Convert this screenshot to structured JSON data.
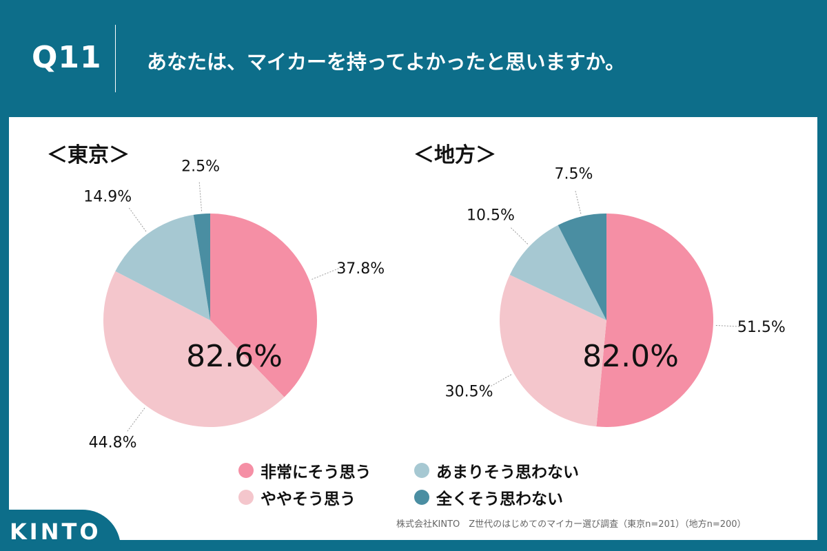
{
  "header": {
    "qnum": "Q11",
    "question": "あなたは、マイカーを持ってよかったと思いますか。"
  },
  "colors": {
    "very_agree": "#f58fa5",
    "somewhat_agree": "#f4c6cc",
    "somewhat_disagree": "#a6c8d2",
    "strongly_disagree": "#4a8ea2",
    "brand": "#0d6e8a"
  },
  "legend": [
    {
      "label": "非常にそう思う",
      "color": "#f58fa5"
    },
    {
      "label": "ややそう思う",
      "color": "#f4c6cc"
    },
    {
      "label": "あまりそう思わない",
      "color": "#a6c8d2"
    },
    {
      "label": "全くそう思わない",
      "color": "#4a8ea2"
    }
  ],
  "chart_data": [
    {
      "type": "pie",
      "title": "＜東京＞",
      "center_label": "82.6%",
      "categories": [
        "非常にそう思う",
        "ややそう思う",
        "あまりそう思わない",
        "全くそう思わない"
      ],
      "values": [
        37.8,
        44.8,
        14.9,
        2.5
      ],
      "value_labels": [
        "37.8%",
        "44.8%",
        "14.9%",
        "2.5%"
      ]
    },
    {
      "type": "pie",
      "title": "＜地方＞",
      "center_label": "82.0%",
      "categories": [
        "非常にそう思う",
        "ややそう思う",
        "あまりそう思わない",
        "全くそう思わない"
      ],
      "values": [
        51.5,
        30.5,
        10.5,
        7.5
      ],
      "value_labels": [
        "51.5%",
        "30.5%",
        "10.5%",
        "7.5%"
      ]
    }
  ],
  "footer": {
    "source": "株式会社KINTO　Z世代のはじめてのマイカー選び調査（東京n=201）（地方n=200）",
    "logo": "KINTO"
  }
}
